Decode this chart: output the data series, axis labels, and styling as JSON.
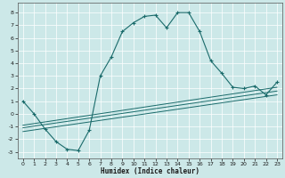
{
  "title": "",
  "xlabel": "Humidex (Indice chaleur)",
  "xlim": [
    -0.5,
    23.5
  ],
  "ylim": [
    -3.5,
    8.8
  ],
  "xticks": [
    0,
    1,
    2,
    3,
    4,
    5,
    6,
    7,
    8,
    9,
    10,
    11,
    12,
    13,
    14,
    15,
    16,
    17,
    18,
    19,
    20,
    21,
    22,
    23
  ],
  "yticks": [
    -3,
    -2,
    -1,
    0,
    1,
    2,
    3,
    4,
    5,
    6,
    7,
    8
  ],
  "bg_color": "#cce8e8",
  "line_color": "#1a6b6b",
  "main_line": {
    "x": [
      0,
      1,
      2,
      3,
      4,
      5,
      6,
      7,
      8,
      9,
      10,
      11,
      12,
      13,
      14,
      15,
      16,
      17,
      18,
      19,
      20,
      21,
      22,
      23
    ],
    "y": [
      1.0,
      0.0,
      -1.2,
      -2.2,
      -2.8,
      -2.9,
      -1.3,
      3.0,
      4.5,
      6.5,
      7.2,
      7.7,
      7.8,
      6.8,
      8.0,
      8.0,
      6.5,
      4.2,
      3.2,
      2.1,
      2.0,
      2.2,
      1.5,
      2.5
    ]
  },
  "line2": {
    "x": [
      0,
      23
    ],
    "y": [
      -0.9,
      2.1
    ]
  },
  "line3": {
    "x": [
      0,
      23
    ],
    "y": [
      -1.1,
      1.8
    ]
  },
  "line4": {
    "x": [
      0,
      23
    ],
    "y": [
      -1.4,
      1.5
    ]
  }
}
